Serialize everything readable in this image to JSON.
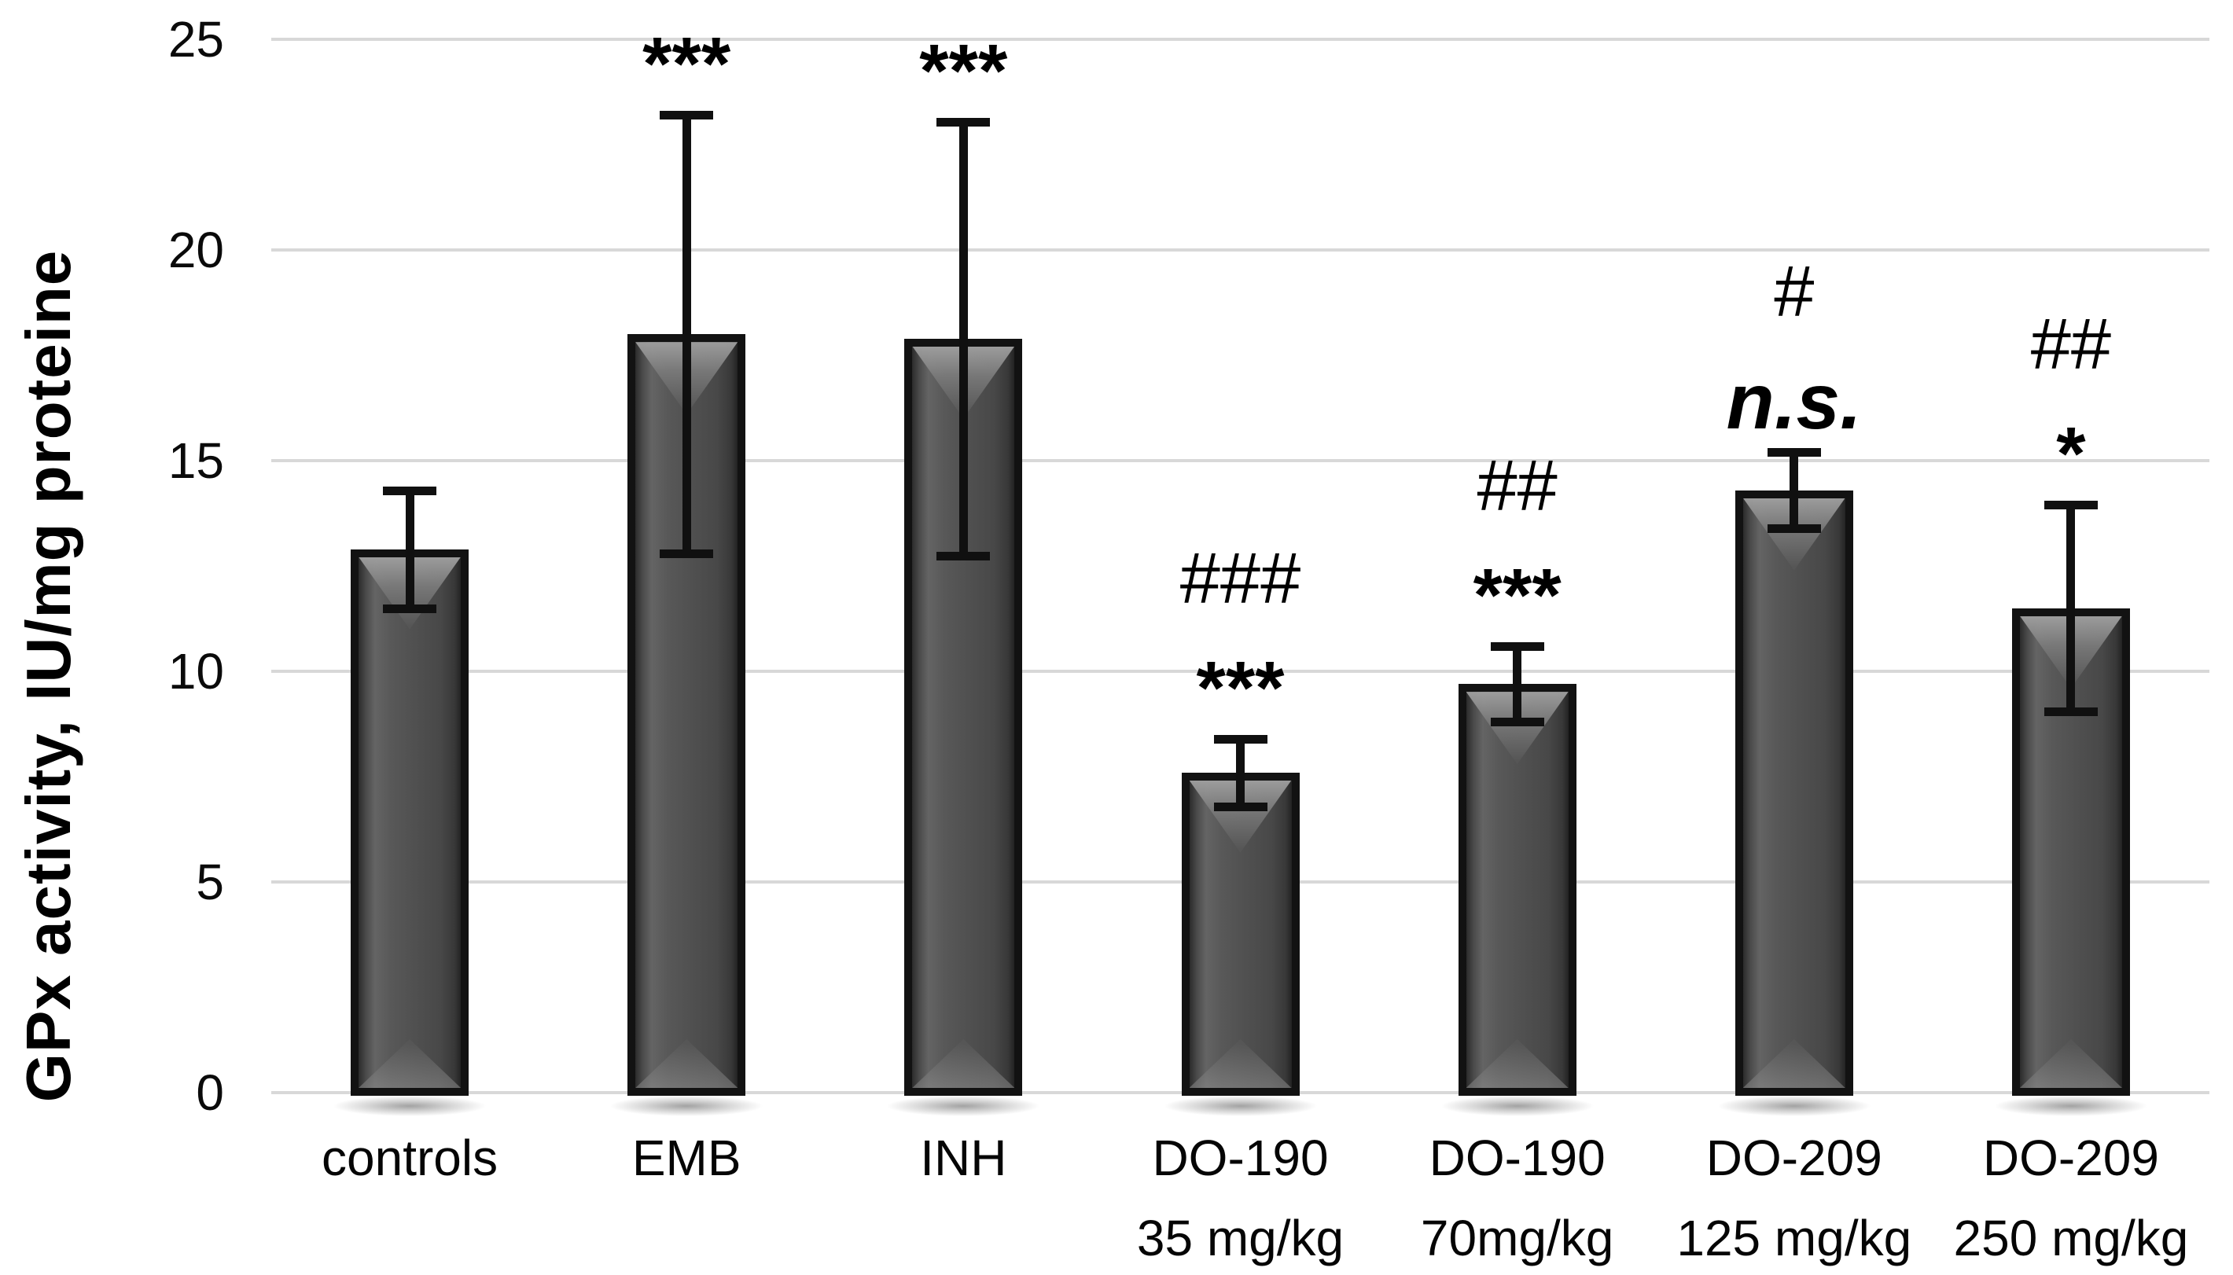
{
  "figure": {
    "background_color": "#ffffff",
    "text_color": "#000000"
  },
  "chart_data": {
    "type": "bar",
    "title": "",
    "xlabel": "",
    "ylabel": "GPx activity, IU/mg proteine",
    "ylim": [
      0,
      25
    ],
    "yticks": [
      0,
      5,
      10,
      15,
      20,
      25
    ],
    "grid": true,
    "legend": false,
    "bar_fill_color": "#4f4f4f",
    "bar_border_color": "#121212",
    "bar_bevel_color": "#9a9a9a",
    "gridline_color": "#d8d8d8",
    "error_bar_color": "#101010",
    "categories": [
      "controls",
      "EMB",
      "INH",
      "DO-190 35 mg/kg",
      "DO-190 70mg/kg",
      "DO-209 125 mg/kg",
      "DO-209 250 mg/kg"
    ],
    "bars": [
      {
        "label_lines": [
          "controls"
        ],
        "value": 12.9,
        "error": 1.4,
        "annotations": []
      },
      {
        "label_lines": [
          "EMB"
        ],
        "value": 18.0,
        "error": 5.2,
        "annotations": [
          "***"
        ]
      },
      {
        "label_lines": [
          "INH"
        ],
        "value": 17.9,
        "error": 5.15,
        "annotations": [
          "***"
        ]
      },
      {
        "label_lines": [
          "DO-190",
          "35 mg/kg"
        ],
        "value": 7.6,
        "error": 0.8,
        "annotations": [
          "###",
          "***"
        ]
      },
      {
        "label_lines": [
          "DO-190",
          "70mg/kg"
        ],
        "value": 9.7,
        "error": 0.9,
        "annotations": [
          "##",
          "***"
        ]
      },
      {
        "label_lines": [
          "DO-209",
          "125 mg/kg"
        ],
        "value": 14.3,
        "error": 0.9,
        "annotations": [
          "#",
          "n.s."
        ]
      },
      {
        "label_lines": [
          "DO-209",
          "250 mg/kg"
        ],
        "value": 11.5,
        "error": 2.45,
        "annotations": [
          "##",
          "*"
        ]
      }
    ]
  }
}
